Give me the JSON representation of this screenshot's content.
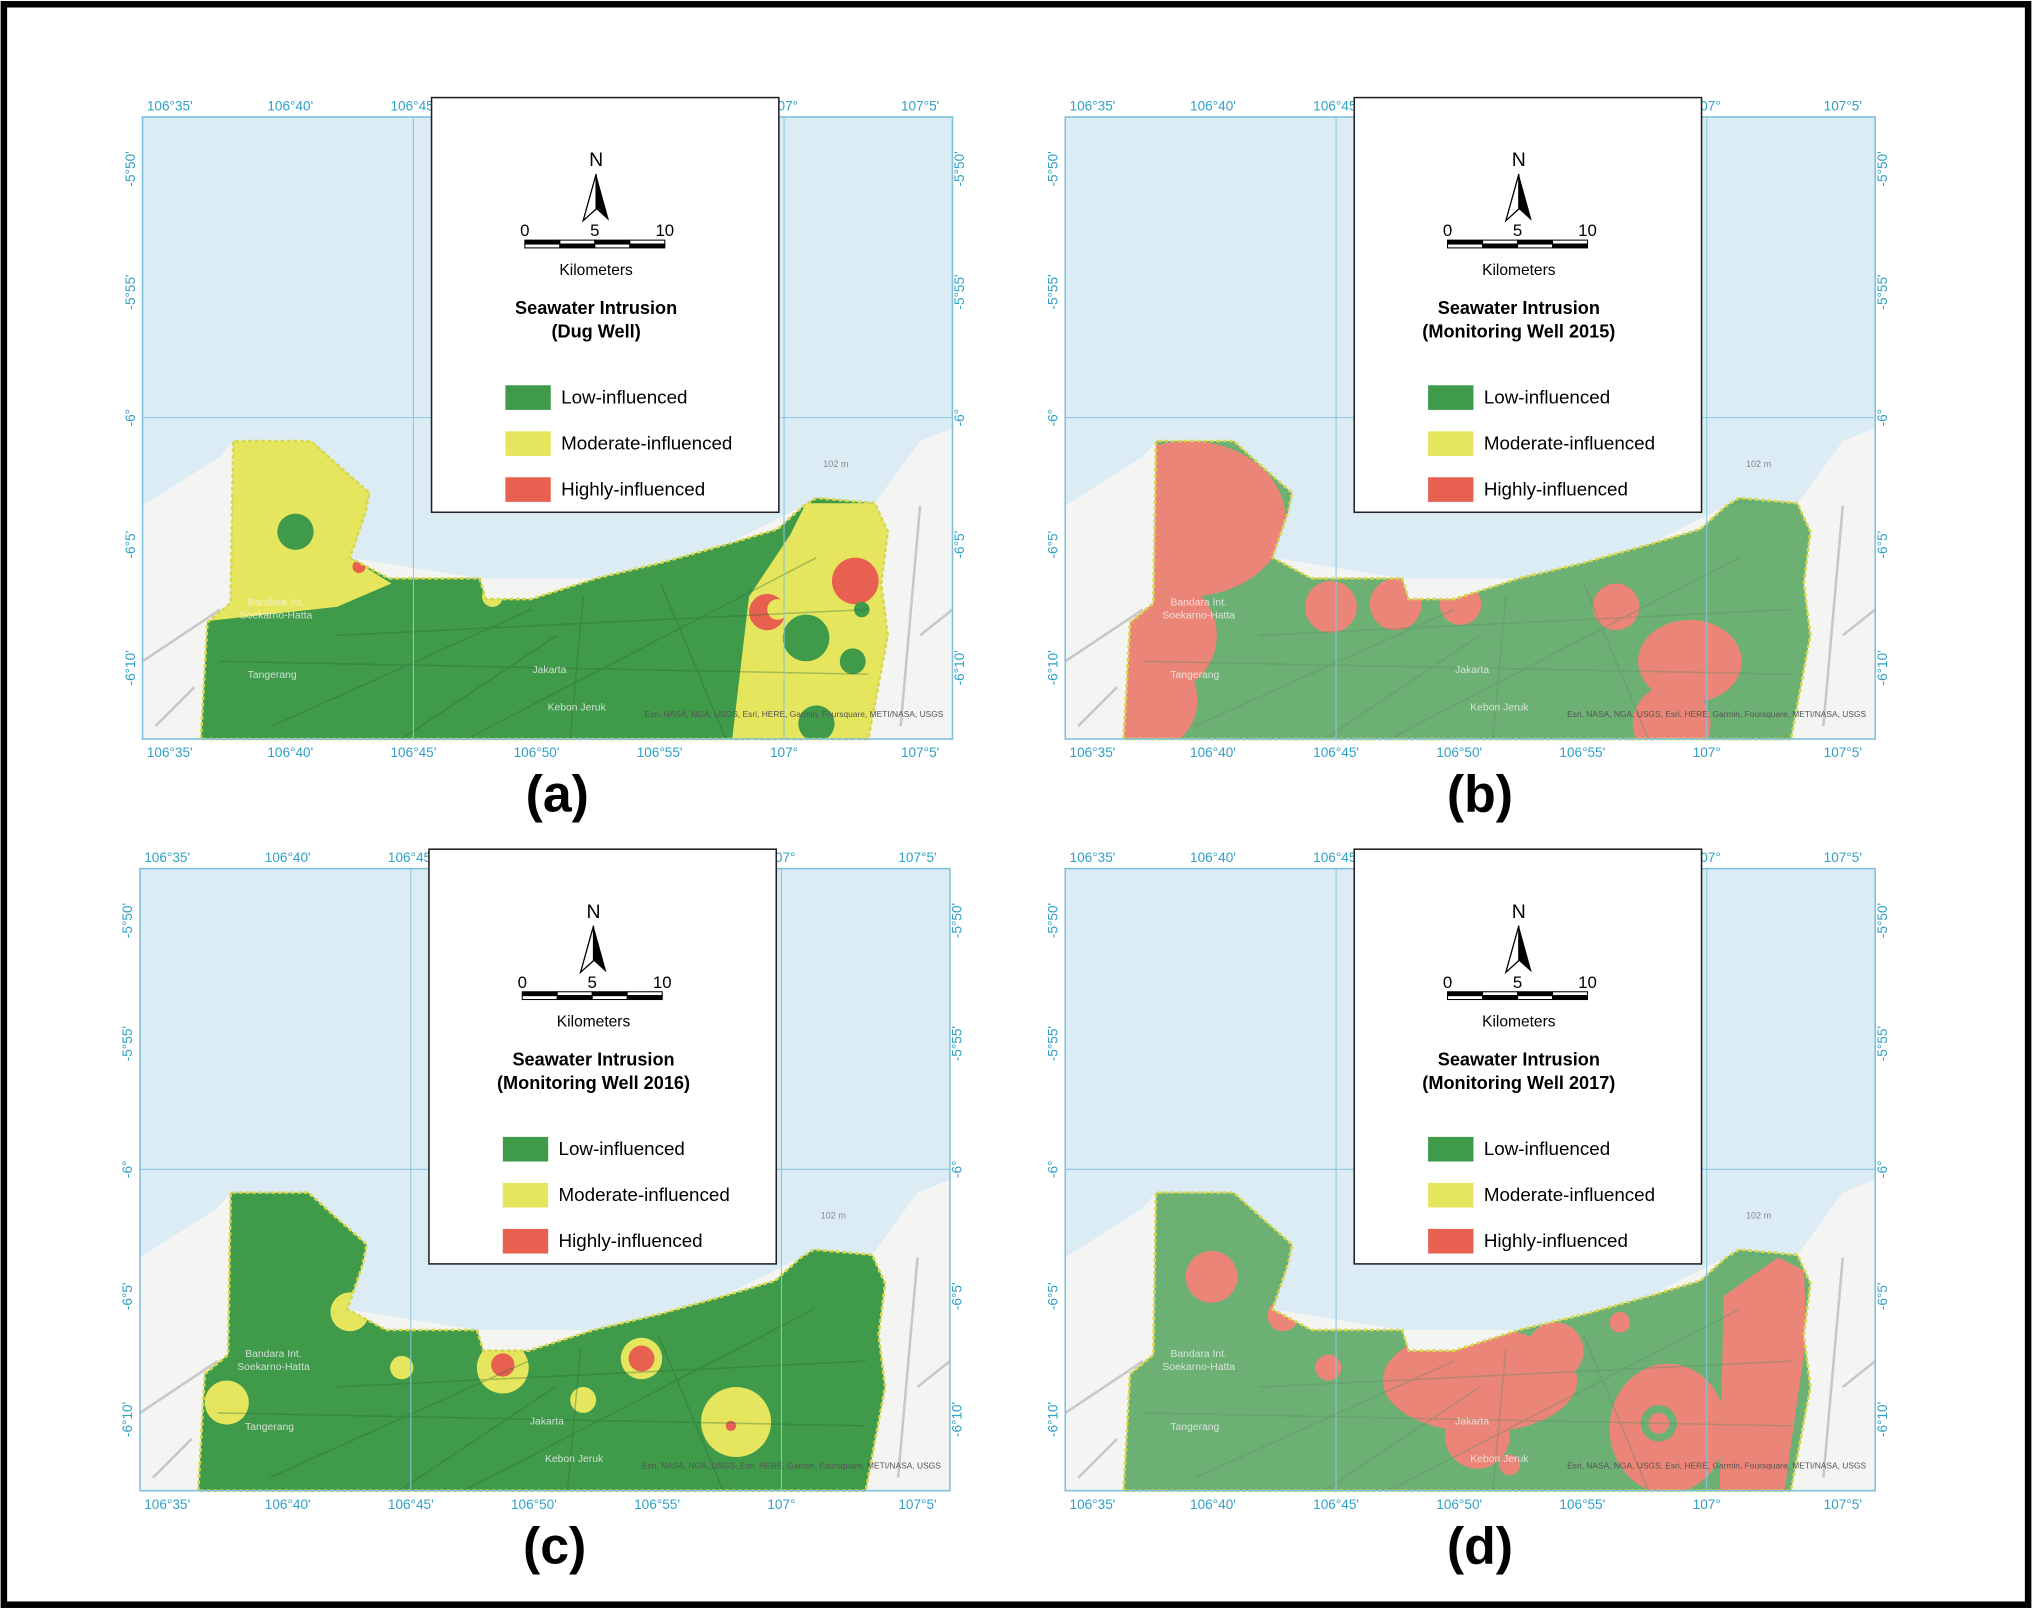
{
  "panels": [
    {
      "label": "(a)",
      "title": [
        "Seawater Intrusion",
        "(Dug Well)"
      ]
    },
    {
      "label": "(b)",
      "title": [
        "Seawater Intrusion",
        "(Monitoring Well 2015)"
      ]
    },
    {
      "label": "(c)",
      "title": [
        "Seawater Intrusion",
        "(Monitoring Well 2016)"
      ]
    },
    {
      "label": "(d)",
      "title": [
        "Seawater Intrusion",
        "(Monitoring Well 2017)"
      ]
    }
  ],
  "legend": {
    "items": [
      {
        "label": "Low-influenced",
        "color": "#3f9a4a"
      },
      {
        "label": "Moderate-influenced",
        "color": "#e6e65e"
      },
      {
        "label": "Highly-influenced",
        "color": "#e8604f"
      }
    ]
  },
  "north": "N",
  "scale": {
    "ticks": [
      0,
      5,
      10
    ],
    "unit": "Kilometers"
  },
  "lon_ticks": [
    "106°35'",
    "106°40'",
    "106°45'",
    "106°50'",
    "106°55'",
    "107°",
    "107°5'"
  ],
  "lat_ticks": [
    "-5°50'",
    "-5°55'",
    "-6°",
    "-6°5'",
    "-6°10'"
  ],
  "places": [
    "Bandara Int.",
    "Soekarno-Hatta",
    "Tangerang",
    "Jakarta",
    "Kebon Jeruk"
  ],
  "elevation": "102 m",
  "attribution": "Esri, NASA, NGA, USGS, Esri, HERE, Garmin, Foursquare, METI/NASA, USGS"
}
